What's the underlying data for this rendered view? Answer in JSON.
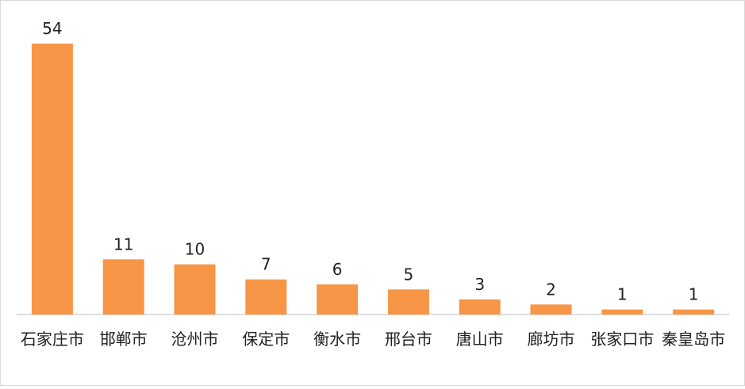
{
  "chart_data": {
    "type": "bar",
    "categories": [
      "石家庄市",
      "邯郸市",
      "沧州市",
      "保定市",
      "衡水市",
      "邢台市",
      "唐山市",
      "廊坊市",
      "张家口市",
      "秦皇岛市"
    ],
    "values": [
      54,
      11,
      10,
      7,
      6,
      5,
      3,
      2,
      1,
      1
    ],
    "title": "",
    "xlabel": "",
    "ylabel": "",
    "ylim": [
      0,
      54
    ],
    "grid": false,
    "legend": "none",
    "data_labels": true,
    "bar_color": "#F79646",
    "axis_color": "#bfbfbf"
  }
}
